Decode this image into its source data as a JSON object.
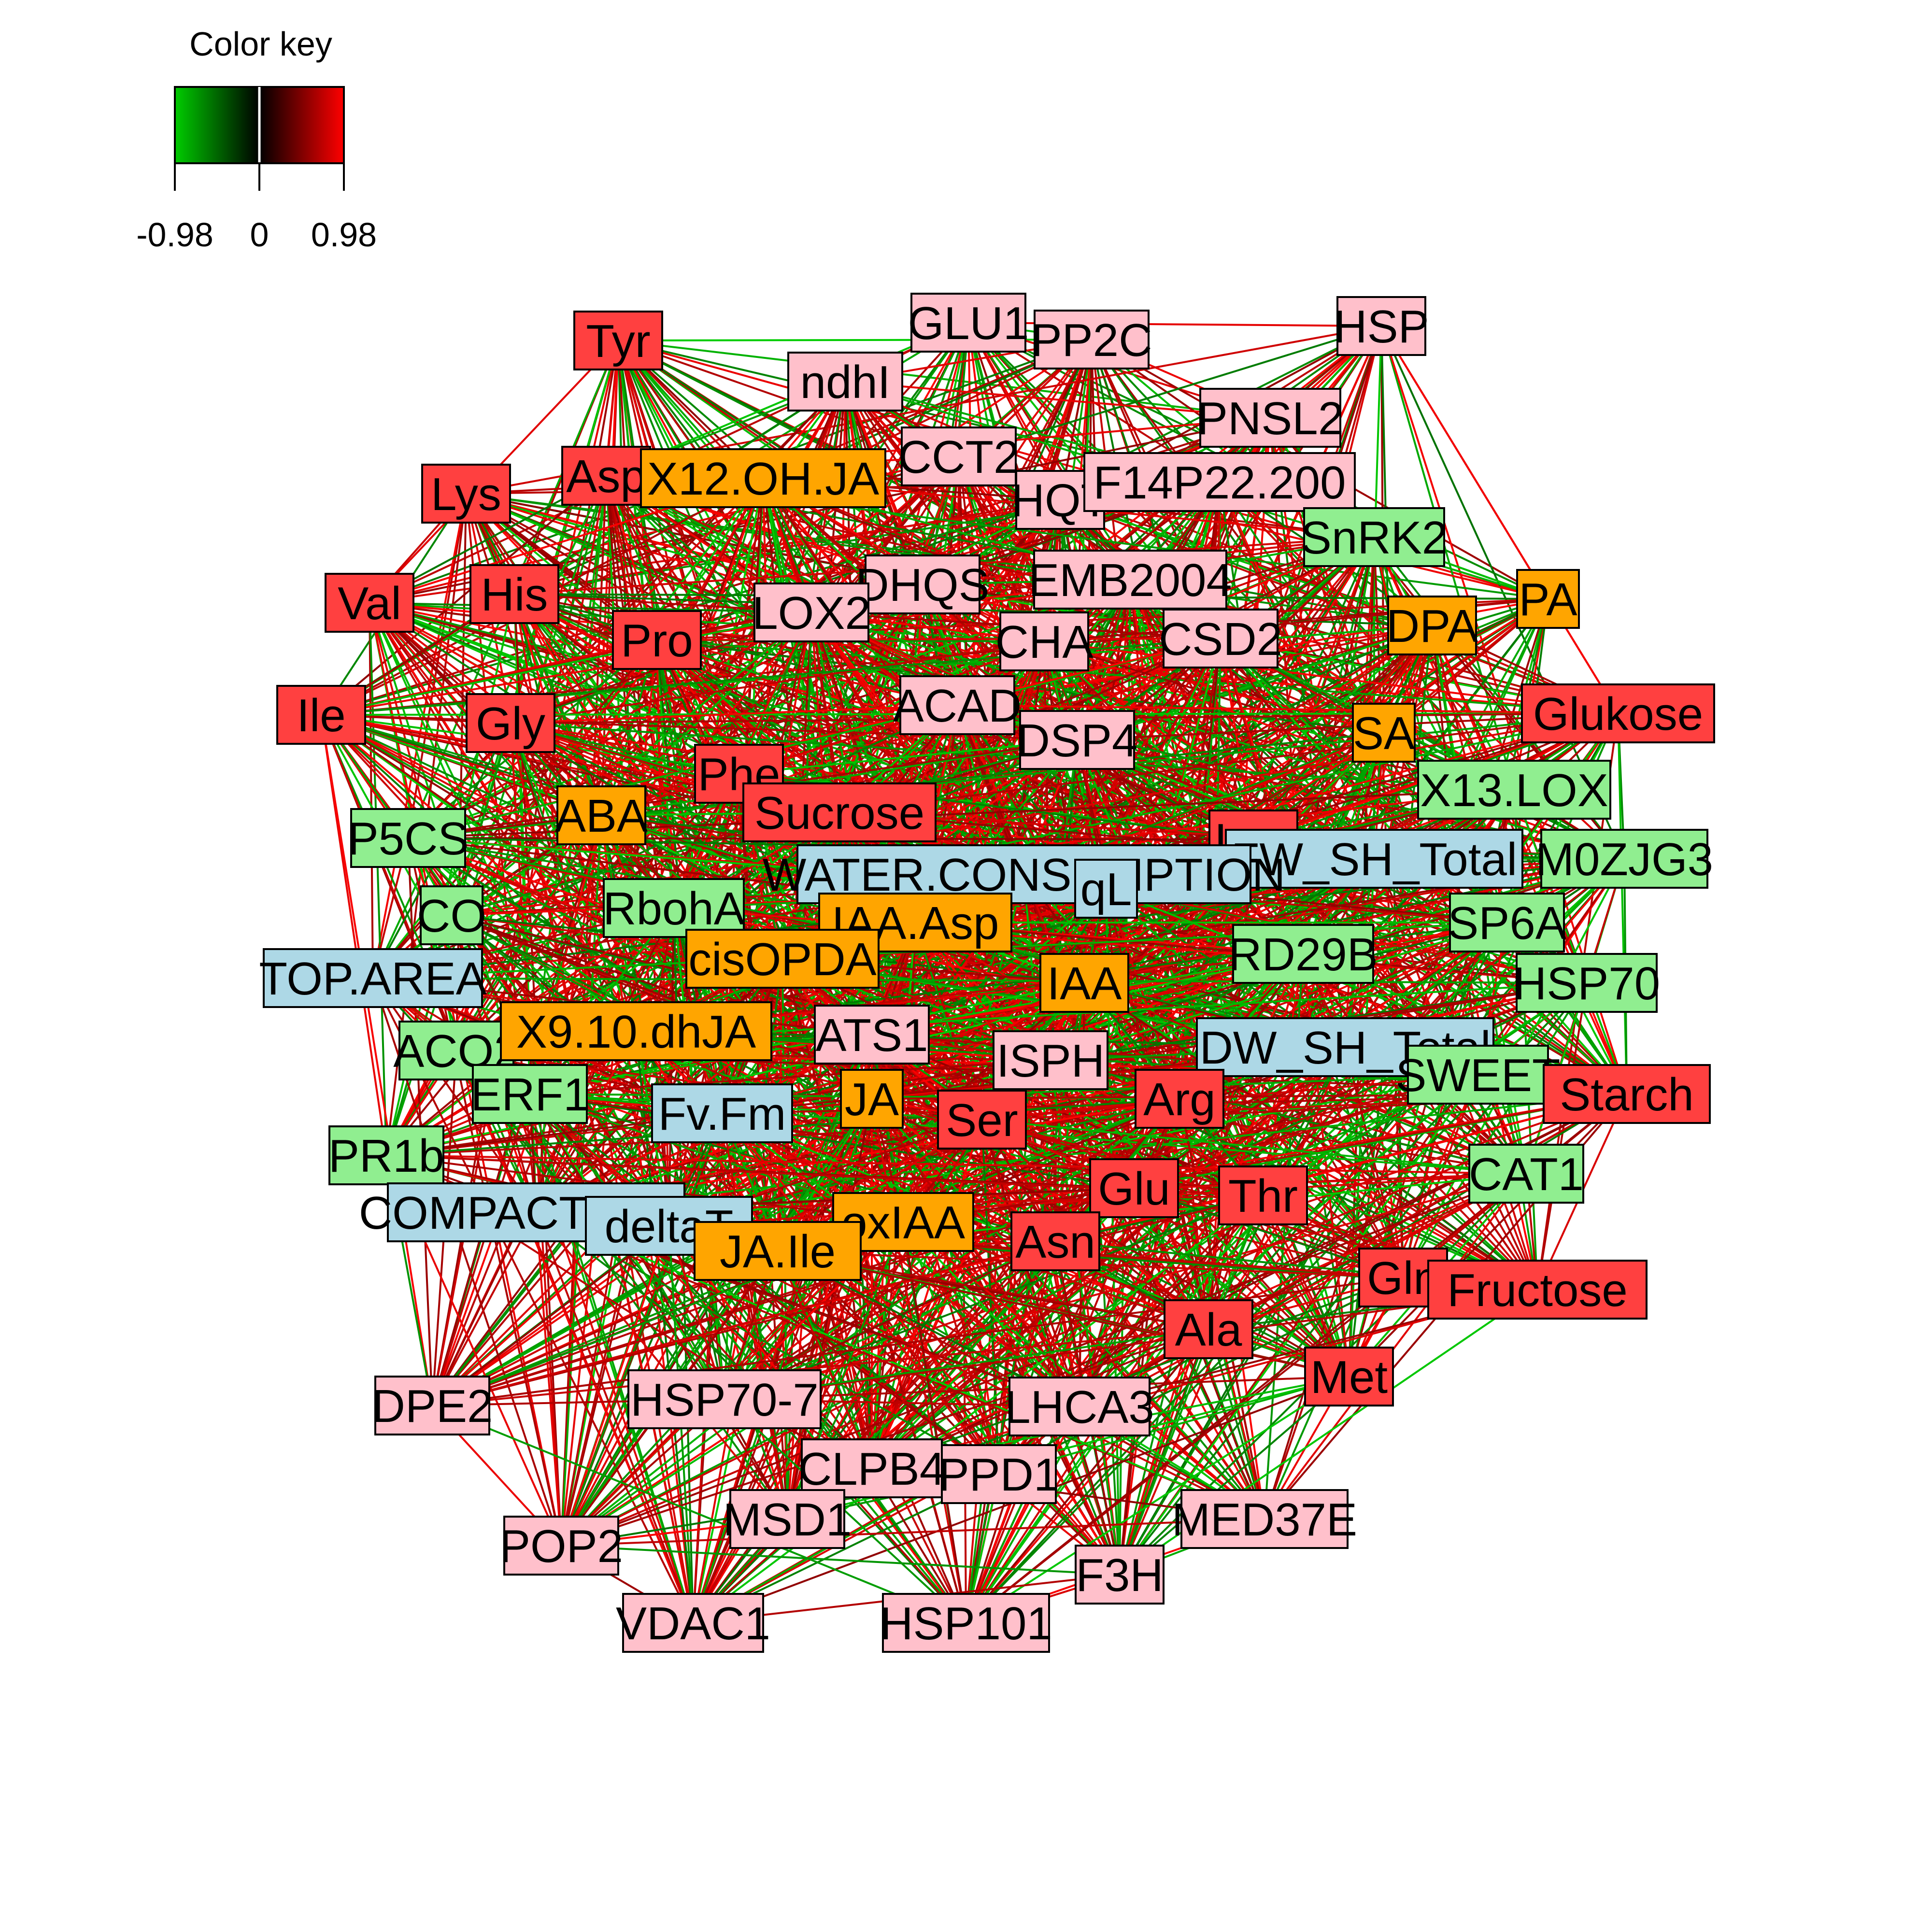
{
  "color_key": {
    "title": "Color key",
    "ticks": [
      "-0.98",
      "0",
      "0.98"
    ],
    "gradient": [
      "#00cc00",
      "#000000",
      "#ff0000"
    ]
  },
  "group_colors": {
    "amino_sugar": "#ff4040",
    "gene": "#ffc0cb",
    "hormone": "#ffa500",
    "gene_green": "#90ee90",
    "phenotype": "#add8e6"
  },
  "nodes": [
    {
      "id": "Tyr",
      "label": "Tyr",
      "group": "amino_sugar"
    },
    {
      "id": "GLU1",
      "label": "GLU1",
      "group": "gene"
    },
    {
      "id": "PP2C",
      "label": "PP2C",
      "group": "gene"
    },
    {
      "id": "HSP",
      "label": "HSP",
      "group": "gene"
    },
    {
      "id": "ndhI",
      "label": "ndhI",
      "group": "gene"
    },
    {
      "id": "PNSL2",
      "label": "PNSL2",
      "group": "gene"
    },
    {
      "id": "CCT2",
      "label": "CCT2",
      "group": "gene"
    },
    {
      "id": "HQT",
      "label": "HQT",
      "group": "gene"
    },
    {
      "id": "F14P22",
      "label": "F14P22.200",
      "group": "gene"
    },
    {
      "id": "Lys",
      "label": "Lys",
      "group": "amino_sugar"
    },
    {
      "id": "Asp",
      "label": "Asp",
      "group": "amino_sugar"
    },
    {
      "id": "X12OHJA",
      "label": "X12.OH.JA",
      "group": "hormone"
    },
    {
      "id": "SnRK2",
      "label": "SnRK2",
      "group": "gene_green"
    },
    {
      "id": "Val",
      "label": "Val",
      "group": "amino_sugar"
    },
    {
      "id": "His",
      "label": "His",
      "group": "amino_sugar"
    },
    {
      "id": "DHQS",
      "label": "DHQS",
      "group": "gene"
    },
    {
      "id": "EMB2004",
      "label": "EMB2004",
      "group": "gene"
    },
    {
      "id": "PA",
      "label": "PA",
      "group": "hormone"
    },
    {
      "id": "DPA",
      "label": "DPA",
      "group": "hormone"
    },
    {
      "id": "Pro",
      "label": "Pro",
      "group": "amino_sugar"
    },
    {
      "id": "LOX2",
      "label": "LOX2",
      "group": "gene"
    },
    {
      "id": "CHA",
      "label": "CHA",
      "group": "gene"
    },
    {
      "id": "CSD2",
      "label": "CSD2",
      "group": "gene"
    },
    {
      "id": "Ile",
      "label": "Ile",
      "group": "amino_sugar"
    },
    {
      "id": "Gly",
      "label": "Gly",
      "group": "amino_sugar"
    },
    {
      "id": "ACAD",
      "label": "ACAD",
      "group": "gene"
    },
    {
      "id": "DSP4",
      "label": "DSP4",
      "group": "gene"
    },
    {
      "id": "SA",
      "label": "SA",
      "group": "hormone"
    },
    {
      "id": "Glukose",
      "label": "Glukose",
      "group": "amino_sugar"
    },
    {
      "id": "Phe",
      "label": "Phe",
      "group": "amino_sugar"
    },
    {
      "id": "X13LOX",
      "label": "X13.LOX",
      "group": "gene_green"
    },
    {
      "id": "ABA",
      "label": "ABA",
      "group": "hormone"
    },
    {
      "id": "Sucrose",
      "label": "Sucrose",
      "group": "amino_sugar"
    },
    {
      "id": "P5CS",
      "label": "P5CS",
      "group": "gene_green"
    },
    {
      "id": "Leu",
      "label": "Leu",
      "group": "amino_sugar"
    },
    {
      "id": "FWSH",
      "label": "FW_SH_Total",
      "group": "phenotype"
    },
    {
      "id": "M0ZJG3",
      "label": "M0ZJG3",
      "group": "gene_green"
    },
    {
      "id": "WATERCONS",
      "label": "WATER.CONSUMPTION",
      "group": "phenotype"
    },
    {
      "id": "qL",
      "label": "qL",
      "group": "phenotype"
    },
    {
      "id": "CO",
      "label": "CO",
      "group": "gene_green"
    },
    {
      "id": "RbohA",
      "label": "RbohA",
      "group": "gene_green"
    },
    {
      "id": "IAAAsp",
      "label": "IAA.Asp",
      "group": "hormone"
    },
    {
      "id": "SP6A",
      "label": "SP6A",
      "group": "gene_green"
    },
    {
      "id": "cisOPDA",
      "label": "cisOPDA",
      "group": "hormone"
    },
    {
      "id": "RD29B",
      "label": "RD29B",
      "group": "gene_green"
    },
    {
      "id": "TOPAREA",
      "label": "TOP.AREA",
      "group": "phenotype"
    },
    {
      "id": "IAA",
      "label": "IAA",
      "group": "hormone"
    },
    {
      "id": "HSP70",
      "label": "HSP70",
      "group": "gene_green"
    },
    {
      "id": "ACO2",
      "label": "ACO2",
      "group": "gene_green"
    },
    {
      "id": "X910dhJA",
      "label": "X9.10.dhJA",
      "group": "hormone"
    },
    {
      "id": "ATS1",
      "label": "ATS1",
      "group": "gene"
    },
    {
      "id": "DWSH",
      "label": "DW_SH_Total",
      "group": "phenotype"
    },
    {
      "id": "ISPH",
      "label": "ISPH",
      "group": "gene"
    },
    {
      "id": "SWEET",
      "label": "SWEET",
      "group": "gene_green"
    },
    {
      "id": "ERF1",
      "label": "ERF1",
      "group": "gene_green"
    },
    {
      "id": "Starch",
      "label": "Starch",
      "group": "amino_sugar"
    },
    {
      "id": "Arg",
      "label": "Arg",
      "group": "amino_sugar"
    },
    {
      "id": "JA",
      "label": "JA",
      "group": "hormone"
    },
    {
      "id": "FvFm",
      "label": "Fv.Fm",
      "group": "phenotype"
    },
    {
      "id": "Ser",
      "label": "Ser",
      "group": "amino_sugar"
    },
    {
      "id": "PR1b",
      "label": "PR1b",
      "group": "gene_green"
    },
    {
      "id": "CAT1",
      "label": "CAT1",
      "group": "gene_green"
    },
    {
      "id": "Glu",
      "label": "Glu",
      "group": "amino_sugar"
    },
    {
      "id": "Thr",
      "label": "Thr",
      "group": "amino_sugar"
    },
    {
      "id": "COMPACT",
      "label": "COMPACTNESS",
      "group": "phenotype"
    },
    {
      "id": "deltaT",
      "label": "deltaT",
      "group": "phenotype"
    },
    {
      "id": "oxIAA",
      "label": "oxIAA",
      "group": "hormone"
    },
    {
      "id": "Asn",
      "label": "Asn",
      "group": "amino_sugar"
    },
    {
      "id": "JAIle",
      "label": "JA.Ile",
      "group": "hormone"
    },
    {
      "id": "Gln",
      "label": "Gln",
      "group": "amino_sugar"
    },
    {
      "id": "Fructose",
      "label": "Fructose",
      "group": "amino_sugar"
    },
    {
      "id": "Ala",
      "label": "Ala",
      "group": "amino_sugar"
    },
    {
      "id": "Met",
      "label": "Met",
      "group": "amino_sugar"
    },
    {
      "id": "DPE2",
      "label": "DPE2",
      "group": "gene"
    },
    {
      "id": "HSP707",
      "label": "HSP70-7",
      "group": "gene"
    },
    {
      "id": "LHCA3",
      "label": "LHCA3",
      "group": "gene"
    },
    {
      "id": "CLPB4",
      "label": "CLPB4",
      "group": "gene"
    },
    {
      "id": "PPD1",
      "label": "PPD1",
      "group": "gene"
    },
    {
      "id": "MED37E",
      "label": "MED37E",
      "group": "gene"
    },
    {
      "id": "MSD1",
      "label": "MSD1",
      "group": "gene"
    },
    {
      "id": "POP2",
      "label": "POP2",
      "group": "gene"
    },
    {
      "id": "F3H",
      "label": "F3H",
      "group": "gene"
    },
    {
      "id": "VDAC1",
      "label": "VDAC1",
      "group": "gene"
    },
    {
      "id": "HSP101",
      "label": "HSP101",
      "group": "gene"
    }
  ]
}
